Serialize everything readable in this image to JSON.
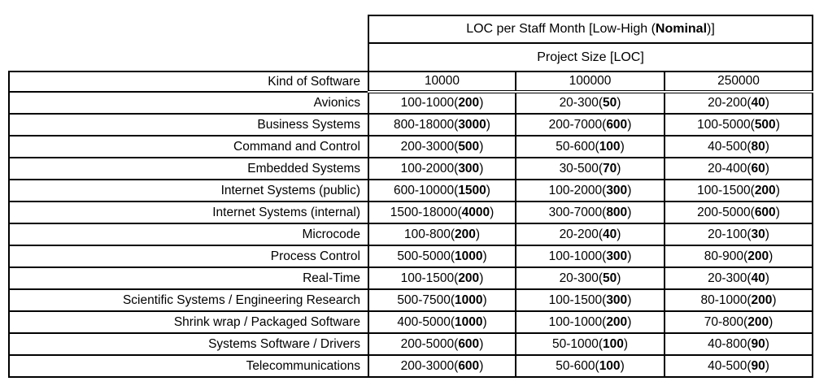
{
  "table": {
    "title": {
      "pre": "LOC per Staff Month [Low-High (",
      "bold": "Nominal",
      "post": ")]"
    },
    "subtitle": "Project Size [LOC]",
    "kind_header": "Kind of Software",
    "size_headers": [
      "10000",
      "100000",
      "250000"
    ],
    "cell_format": {
      "open": "(",
      "close": ")"
    },
    "rows": [
      {
        "kind": "Avionics",
        "cells": [
          {
            "range": "100-1000",
            "nominal": "200"
          },
          {
            "range": "20-300",
            "nominal": "50"
          },
          {
            "range": "20-200",
            "nominal": "40"
          }
        ]
      },
      {
        "kind": "Business Systems",
        "cells": [
          {
            "range": "800-18000",
            "nominal": "3000"
          },
          {
            "range": "200-7000",
            "nominal": "600"
          },
          {
            "range": "100-5000",
            "nominal": "500"
          }
        ]
      },
      {
        "kind": "Command and Control",
        "cells": [
          {
            "range": "200-3000",
            "nominal": "500"
          },
          {
            "range": "50-600",
            "nominal": "100"
          },
          {
            "range": "40-500",
            "nominal": "80"
          }
        ]
      },
      {
        "kind": "Embedded Systems",
        "cells": [
          {
            "range": "100-2000",
            "nominal": "300"
          },
          {
            "range": "30-500",
            "nominal": "70"
          },
          {
            "range": "20-400",
            "nominal": "60"
          }
        ]
      },
      {
        "kind": "Internet Systems (public)",
        "cells": [
          {
            "range": "600-10000",
            "nominal": "1500"
          },
          {
            "range": "100-2000",
            "nominal": "300"
          },
          {
            "range": "100-1500",
            "nominal": "200"
          }
        ]
      },
      {
        "kind": "Internet Systems (internal)",
        "cells": [
          {
            "range": "1500-18000",
            "nominal": "4000"
          },
          {
            "range": "300-7000",
            "nominal": "800"
          },
          {
            "range": "200-5000",
            "nominal": "600"
          }
        ]
      },
      {
        "kind": "Microcode",
        "cells": [
          {
            "range": "100-800",
            "nominal": "200"
          },
          {
            "range": "20-200",
            "nominal": "40"
          },
          {
            "range": "20-100",
            "nominal": "30"
          }
        ]
      },
      {
        "kind": "Process Control",
        "cells": [
          {
            "range": "500-5000",
            "nominal": "1000"
          },
          {
            "range": "100-1000",
            "nominal": "300"
          },
          {
            "range": "80-900",
            "nominal": "200"
          }
        ]
      },
      {
        "kind": "Real-Time",
        "cells": [
          {
            "range": "100-1500",
            "nominal": "200"
          },
          {
            "range": "20-300",
            "nominal": "50"
          },
          {
            "range": "20-300",
            "nominal": "40"
          }
        ]
      },
      {
        "kind": "Scientific Systems / Engineering Research",
        "cells": [
          {
            "range": "500-7500",
            "nominal": "1000"
          },
          {
            "range": "100-1500",
            "nominal": "300"
          },
          {
            "range": "80-1000",
            "nominal": "200"
          }
        ]
      },
      {
        "kind": "Shrink wrap / Packaged Software",
        "cells": [
          {
            "range": "400-5000",
            "nominal": "1000"
          },
          {
            "range": "100-1000",
            "nominal": "200"
          },
          {
            "range": "70-800",
            "nominal": "200"
          }
        ]
      },
      {
        "kind": "Systems Software / Drivers",
        "cells": [
          {
            "range": "200-5000",
            "nominal": "600"
          },
          {
            "range": "50-1000",
            "nominal": "100"
          },
          {
            "range": "40-800",
            "nominal": "90"
          }
        ]
      },
      {
        "kind": "Telecommunications",
        "cells": [
          {
            "range": "200-3000",
            "nominal": "600"
          },
          {
            "range": "50-600",
            "nominal": "100"
          },
          {
            "range": "40-500",
            "nominal": "90"
          }
        ]
      }
    ],
    "colors": {
      "border": "#000000",
      "text": "#000000",
      "background": "#ffffff"
    }
  }
}
